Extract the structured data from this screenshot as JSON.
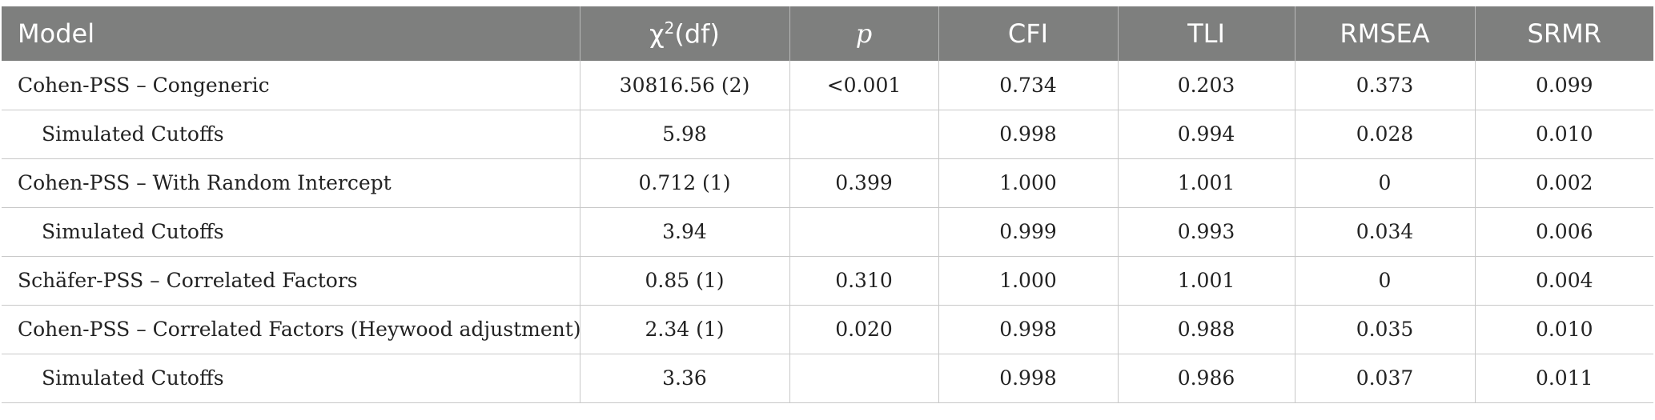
{
  "table": {
    "headers": {
      "model": "Model",
      "chi_symbol": "χ",
      "chi_sup": "2",
      "chi_df": "(df)",
      "p": "p",
      "cfi": "CFI",
      "tli": "TLI",
      "rmsea": "RMSEA",
      "srmr": "SRMR"
    },
    "rows": [
      {
        "model": "Cohen-PSS – Congeneric",
        "chi": "30816.56 (2)",
        "p": "<0.001",
        "cfi": "0.734",
        "tli": "0.203",
        "rmsea": "0.373",
        "srmr": "0.099"
      },
      {
        "model": "Simulated Cutoffs",
        "chi": "5.98",
        "p": "",
        "cfi": "0.998",
        "tli": "0.994",
        "rmsea": "0.028",
        "srmr": "0.010"
      },
      {
        "model": "Cohen-PSS – With Random Intercept",
        "chi": "0.712 (1)",
        "p": "0.399",
        "cfi": "1.000",
        "tli": "1.001",
        "rmsea": "0",
        "srmr": "0.002"
      },
      {
        "model": "Simulated Cutoffs",
        "chi": "3.94",
        "p": "",
        "cfi": "0.999",
        "tli": "0.993",
        "rmsea": "0.034",
        "srmr": "0.006"
      },
      {
        "model": "Schäfer-PSS – Correlated Factors",
        "chi": "0.85 (1)",
        "p": "0.310",
        "cfi": "1.000",
        "tli": "1.001",
        "rmsea": "0",
        "srmr": "0.004"
      },
      {
        "model": "Cohen-PSS – Correlated Factors (Heywood adjustment)",
        "chi": "2.34 (1)",
        "p": "0.020",
        "cfi": "0.998",
        "tli": "0.988",
        "rmsea": "0.035",
        "srmr": "0.010"
      },
      {
        "model": "Simulated Cutoffs",
        "chi": "3.36",
        "p": "",
        "cfi": "0.998",
        "tli": "0.986",
        "rmsea": "0.037",
        "srmr": "0.011"
      }
    ]
  }
}
